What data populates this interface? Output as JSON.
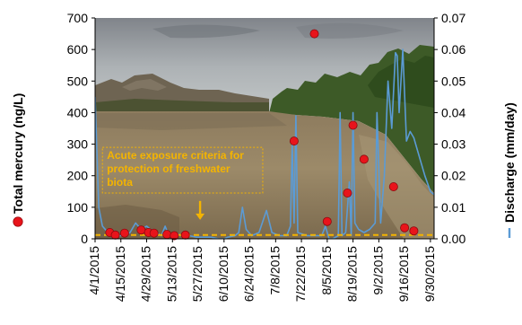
{
  "chart_data": {
    "type": "scatter",
    "secondary_type": "line",
    "background": "landscape photograph of a wide, brown, turbid river with eroded badland bluffs and green cottonwood trees under an overcast sky",
    "xlabel": "",
    "ylabel": "Total mercury (ng/L)",
    "y2label": "Discharge (mm/day)",
    "x_range": [
      "2015-04-01",
      "2015-10-02"
    ],
    "ylim": [
      0,
      700
    ],
    "y2lim": [
      0,
      0.07
    ],
    "y_ticks": [
      "0",
      "100",
      "200",
      "300",
      "400",
      "500",
      "600",
      "700"
    ],
    "y2_ticks": [
      "0.00",
      "0.01",
      "0.02",
      "0.03",
      "0.04",
      "0.05",
      "0.06",
      "0.07"
    ],
    "x_tick_labels": [
      {
        "label": "4/1/2015",
        "date": "2015-04-01"
      },
      {
        "label": "4/15/2015",
        "date": "2015-04-15"
      },
      {
        "label": "4/29/2015",
        "date": "2015-04-29"
      },
      {
        "label": "5/13/2015",
        "date": "2015-05-13"
      },
      {
        "label": "5/27/2015",
        "date": "2015-05-27"
      },
      {
        "label": "6/10/2015",
        "date": "2015-06-10"
      },
      {
        "label": "6/24/2015",
        "date": "2015-06-24"
      },
      {
        "label": "7/8/2015",
        "date": "2015-07-08"
      },
      {
        "label": "7/22/2015",
        "date": "2015-07-22"
      },
      {
        "label": "8/5/2015",
        "date": "2015-08-05"
      },
      {
        "label": "8/19/2015",
        "date": "2015-08-19"
      },
      {
        "label": "9/2/2015",
        "date": "2015-09-02"
      },
      {
        "label": "9/16/2015",
        "date": "2015-09-16"
      },
      {
        "label": "9/30/2015",
        "date": "2015-09-30"
      }
    ],
    "series": [
      {
        "name": "Total mercury (ng/L)",
        "axis": "left",
        "marker": "circle",
        "color": "#e8141b",
        "points": [
          {
            "x": "2015-04-09",
            "y": 20
          },
          {
            "x": "2015-04-12",
            "y": 12
          },
          {
            "x": "2015-04-17",
            "y": 18
          },
          {
            "x": "2015-04-26",
            "y": 28
          },
          {
            "x": "2015-04-30",
            "y": 20
          },
          {
            "x": "2015-05-03",
            "y": 18
          },
          {
            "x": "2015-05-10",
            "y": 14
          },
          {
            "x": "2015-05-14",
            "y": 10
          },
          {
            "x": "2015-05-20",
            "y": 12
          },
          {
            "x": "2015-07-18",
            "y": 310
          },
          {
            "x": "2015-07-29",
            "y": 650
          },
          {
            "x": "2015-08-05",
            "y": 55
          },
          {
            "x": "2015-08-16",
            "y": 145
          },
          {
            "x": "2015-08-19",
            "y": 360
          },
          {
            "x": "2015-08-25",
            "y": 252
          },
          {
            "x": "2015-09-10",
            "y": 165
          },
          {
            "x": "2015-09-16",
            "y": 35
          },
          {
            "x": "2015-09-21",
            "y": 25
          }
        ]
      },
      {
        "name": "Discharge (mm/day)",
        "axis": "right",
        "color": "#5b9bd5",
        "points": [
          {
            "x": "2015-04-01",
            "y": 0.045
          },
          {
            "x": "2015-04-03",
            "y": 0.01
          },
          {
            "x": "2015-04-05",
            "y": 0.004
          },
          {
            "x": "2015-04-08",
            "y": 0.002
          },
          {
            "x": "2015-04-12",
            "y": 0.001
          },
          {
            "x": "2015-04-16",
            "y": 0.001
          },
          {
            "x": "2015-04-20",
            "y": 0.002
          },
          {
            "x": "2015-04-23",
            "y": 0.005
          },
          {
            "x": "2015-04-26",
            "y": 0.003
          },
          {
            "x": "2015-04-29",
            "y": 0.004
          },
          {
            "x": "2015-05-01",
            "y": 0.003
          },
          {
            "x": "2015-05-04",
            "y": 0.002
          },
          {
            "x": "2015-05-07",
            "y": 0.001
          },
          {
            "x": "2015-05-09",
            "y": 0.004
          },
          {
            "x": "2015-05-11",
            "y": 0.001
          },
          {
            "x": "2015-05-14",
            "y": 0.002
          },
          {
            "x": "2015-05-18",
            "y": 0.001
          },
          {
            "x": "2015-05-22",
            "y": 0.001
          },
          {
            "x": "2015-05-26",
            "y": 0.0005
          },
          {
            "x": "2015-05-30",
            "y": 0.0005
          },
          {
            "x": "2015-06-03",
            "y": 0.0005
          },
          {
            "x": "2015-06-07",
            "y": 0.0
          },
          {
            "x": "2015-06-10",
            "y": 0.0
          },
          {
            "x": "2015-06-12",
            "y": 0.0005
          },
          {
            "x": "2015-06-16",
            "y": 0.001
          },
          {
            "x": "2015-06-18",
            "y": 0.002
          },
          {
            "x": "2015-06-20",
            "y": 0.01
          },
          {
            "x": "2015-06-22",
            "y": 0.003
          },
          {
            "x": "2015-06-25",
            "y": 0.001
          },
          {
            "x": "2015-06-29",
            "y": 0.002
          },
          {
            "x": "2015-07-03",
            "y": 0.009
          },
          {
            "x": "2015-07-06",
            "y": 0.002
          },
          {
            "x": "2015-07-10",
            "y": 0.001
          },
          {
            "x": "2015-07-14",
            "y": 0.001
          },
          {
            "x": "2015-07-16",
            "y": 0.004
          },
          {
            "x": "2015-07-17",
            "y": 0.03
          },
          {
            "x": "2015-07-18",
            "y": 0.005
          },
          {
            "x": "2015-07-19",
            "y": 0.039
          },
          {
            "x": "2015-07-20",
            "y": 0.002
          },
          {
            "x": "2015-07-25",
            "y": 0.001
          },
          {
            "x": "2015-07-29",
            "y": 0.001
          },
          {
            "x": "2015-08-02",
            "y": 0.001
          },
          {
            "x": "2015-08-04",
            "y": 0.004
          },
          {
            "x": "2015-08-06",
            "y": 0.0
          },
          {
            "x": "2015-08-08",
            "y": 0.0
          },
          {
            "x": "2015-08-11",
            "y": 0.001
          },
          {
            "x": "2015-08-12",
            "y": 0.04
          },
          {
            "x": "2015-08-13",
            "y": 0.001
          },
          {
            "x": "2015-08-15",
            "y": 0.002
          },
          {
            "x": "2015-08-17",
            "y": 0.018
          },
          {
            "x": "2015-08-18",
            "y": 0.001
          },
          {
            "x": "2015-08-19",
            "y": 0.04
          },
          {
            "x": "2015-08-20",
            "y": 0.005
          },
          {
            "x": "2015-08-22",
            "y": 0.003
          },
          {
            "x": "2015-08-25",
            "y": 0.002
          },
          {
            "x": "2015-08-28",
            "y": 0.003
          },
          {
            "x": "2015-08-31",
            "y": 0.005
          },
          {
            "x": "2015-09-01",
            "y": 0.04
          },
          {
            "x": "2015-09-03",
            "y": 0.005
          },
          {
            "x": "2015-09-05",
            "y": 0.02
          },
          {
            "x": "2015-09-07",
            "y": 0.05
          },
          {
            "x": "2015-09-09",
            "y": 0.035
          },
          {
            "x": "2015-09-11",
            "y": 0.059
          },
          {
            "x": "2015-09-12",
            "y": 0.058
          },
          {
            "x": "2015-09-13",
            "y": 0.04
          },
          {
            "x": "2015-09-15",
            "y": 0.06
          },
          {
            "x": "2015-09-17",
            "y": 0.031
          },
          {
            "x": "2015-09-19",
            "y": 0.034
          },
          {
            "x": "2015-09-21",
            "y": 0.032
          },
          {
            "x": "2015-09-23",
            "y": 0.028
          },
          {
            "x": "2015-09-25",
            "y": 0.024
          },
          {
            "x": "2015-09-27",
            "y": 0.02
          },
          {
            "x": "2015-09-30",
            "y": 0.015
          },
          {
            "x": "2015-10-02",
            "y": 0.014
          }
        ]
      }
    ],
    "threshold": {
      "value": 12,
      "axis": "left",
      "color": "#f4b400",
      "style": "dashed",
      "label": "Acute exposure criteria for protection of freshwater biota",
      "label_lines": [
        "Acute exposure criteria for",
        "protection of freshwater",
        "biota"
      ],
      "arrow_x": "2015-05-28",
      "arrow_from_y": 120,
      "arrow_to_y": 60,
      "box_from": "2015-04-05",
      "box_to": "2015-07-01",
      "box_y_top": 290,
      "box_y_bottom": 145
    },
    "grid": false,
    "legend": "axis-labels"
  }
}
